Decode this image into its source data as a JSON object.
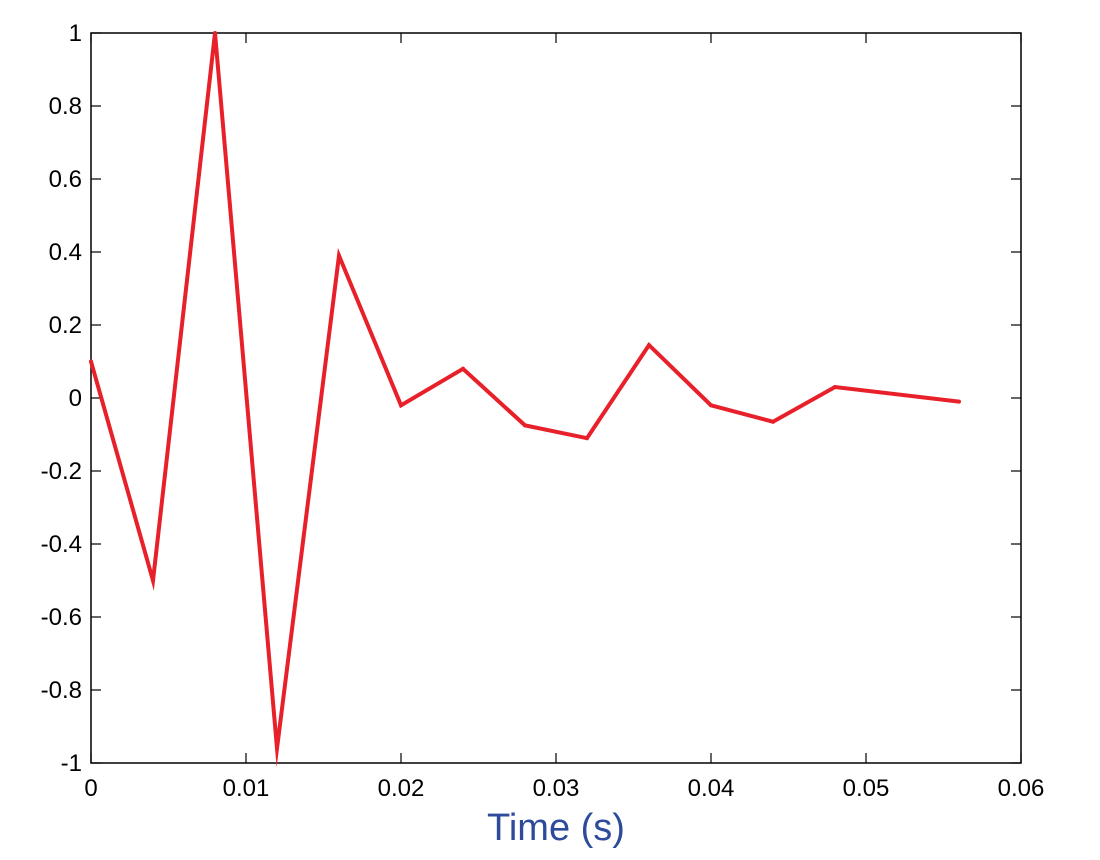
{
  "chart_data": {
    "type": "line",
    "title": "",
    "xlabel": "Time (s)",
    "ylabel": "",
    "xlim": [
      0,
      0.06
    ],
    "ylim": [
      -1,
      1
    ],
    "x_ticks": [
      "0",
      "0.01",
      "0.02",
      "0.03",
      "0.04",
      "0.05",
      "0.06"
    ],
    "y_ticks": [
      "1",
      "0.8",
      "0.6",
      "0.4",
      "0.2",
      "0",
      "-0.2",
      "-0.4",
      "-0.6",
      "-0.8",
      "-1"
    ],
    "grid": false,
    "series": [
      {
        "color": "#e8202a",
        "x": [
          0,
          0.004,
          0.008,
          0.012,
          0.016,
          0.02,
          0.024,
          0.028,
          0.032,
          0.036,
          0.04,
          0.044,
          0.048,
          0.056
        ],
        "y": [
          0.1,
          -0.5,
          1.0,
          -0.96,
          0.39,
          -0.02,
          0.08,
          -0.075,
          -0.11,
          0.145,
          -0.02,
          -0.065,
          0.03,
          -0.01
        ]
      }
    ],
    "colors": {
      "axis": "#000000",
      "xlabel": "#2e4b9b"
    }
  }
}
